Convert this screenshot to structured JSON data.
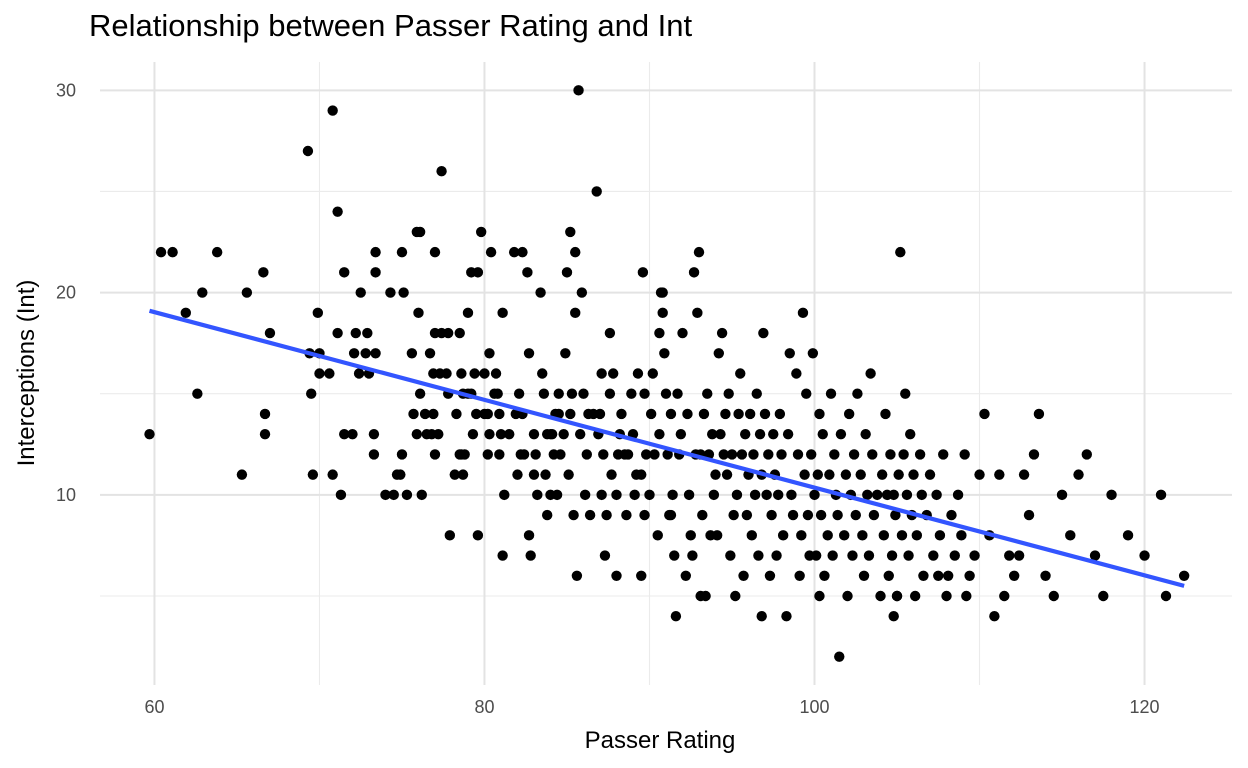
{
  "chart_data": {
    "type": "scatter",
    "title": "Relationship between Passer Rating and Int",
    "xlabel": "Passer Rating",
    "ylabel": "Interceptions (Int)",
    "xlim": [
      56.7,
      125.3
    ],
    "ylim": [
      0.6,
      31.4
    ],
    "x_ticks": [
      60,
      80,
      100,
      120
    ],
    "x_tick_labels": [
      "60",
      "80",
      "100",
      "120"
    ],
    "y_ticks": [
      10,
      20,
      30
    ],
    "y_tick_labels": [
      "10",
      "20",
      "30"
    ],
    "grid": true,
    "legend": "none",
    "point_color": "#000000",
    "trend_color": "#3355FF",
    "trend_line": {
      "x": [
        59.7,
        122.4
      ],
      "y": [
        19.1,
        5.5
      ]
    },
    "points": [
      [
        59.7,
        13
      ],
      [
        60.4,
        22
      ],
      [
        61.1,
        22
      ],
      [
        61.9,
        19
      ],
      [
        62.6,
        15
      ],
      [
        62.9,
        20
      ],
      [
        63.8,
        22
      ],
      [
        65.3,
        11
      ],
      [
        65.6,
        20
      ],
      [
        66.6,
        21
      ],
      [
        66.7,
        14
      ],
      [
        66.7,
        13
      ],
      [
        67.0,
        18
      ],
      [
        69.3,
        27
      ],
      [
        69.4,
        17
      ],
      [
        69.5,
        15
      ],
      [
        69.6,
        11
      ],
      [
        69.9,
        19
      ],
      [
        70.0,
        16
      ],
      [
        70.0,
        17
      ],
      [
        70.6,
        16
      ],
      [
        70.8,
        11
      ],
      [
        70.8,
        29
      ],
      [
        71.1,
        24
      ],
      [
        71.1,
        18
      ],
      [
        71.3,
        10
      ],
      [
        71.5,
        21
      ],
      [
        71.5,
        13
      ],
      [
        72.0,
        13
      ],
      [
        72.1,
        17
      ],
      [
        72.2,
        18
      ],
      [
        72.4,
        16
      ],
      [
        72.5,
        20
      ],
      [
        72.8,
        17
      ],
      [
        72.9,
        18
      ],
      [
        73.0,
        16
      ],
      [
        73.3,
        12
      ],
      [
        73.3,
        13
      ],
      [
        73.4,
        17
      ],
      [
        73.4,
        21
      ],
      [
        73.4,
        22
      ],
      [
        74.0,
        10
      ],
      [
        74.3,
        20
      ],
      [
        74.5,
        10
      ],
      [
        74.9,
        11
      ],
      [
        75.0,
        22
      ],
      [
        75.0,
        12
      ],
      [
        75.1,
        20
      ],
      [
        75.3,
        10
      ],
      [
        75.6,
        17
      ],
      [
        75.7,
        14
      ],
      [
        75.9,
        13
      ],
      [
        75.9,
        23
      ],
      [
        76.0,
        19
      ],
      [
        76.1,
        15
      ],
      [
        76.1,
        23
      ],
      [
        76.4,
        14
      ],
      [
        76.5,
        13
      ],
      [
        76.7,
        17
      ],
      [
        76.8,
        13
      ],
      [
        76.9,
        14
      ],
      [
        76.9,
        16
      ],
      [
        77.0,
        18
      ],
      [
        77.0,
        12
      ],
      [
        77.0,
        22
      ],
      [
        77.2,
        13
      ],
      [
        77.3,
        16
      ],
      [
        77.4,
        18
      ],
      [
        77.4,
        26
      ],
      [
        77.7,
        16
      ],
      [
        77.8,
        15
      ],
      [
        77.8,
        18
      ],
      [
        77.9,
        8
      ],
      [
        78.2,
        11
      ],
      [
        78.3,
        14
      ],
      [
        78.5,
        12
      ],
      [
        78.5,
        18
      ],
      [
        78.6,
        12
      ],
      [
        78.6,
        16
      ],
      [
        78.7,
        15
      ],
      [
        78.7,
        11
      ],
      [
        79.0,
        19
      ],
      [
        79.0,
        15
      ],
      [
        79.2,
        21
      ],
      [
        79.2,
        15
      ],
      [
        79.3,
        13
      ],
      [
        79.4,
        16
      ],
      [
        79.5,
        14
      ],
      [
        79.6,
        21
      ],
      [
        79.8,
        23
      ],
      [
        80.0,
        16
      ],
      [
        80.0,
        14
      ],
      [
        80.2,
        14
      ],
      [
        80.2,
        12
      ],
      [
        80.3,
        17
      ],
      [
        80.3,
        13
      ],
      [
        80.4,
        22
      ],
      [
        80.6,
        15
      ],
      [
        80.7,
        16
      ],
      [
        80.8,
        15
      ],
      [
        80.9,
        14
      ],
      [
        80.9,
        12
      ],
      [
        81.0,
        13
      ],
      [
        81.1,
        7
      ],
      [
        81.1,
        19
      ],
      [
        81.2,
        10
      ],
      [
        81.5,
        13
      ],
      [
        81.8,
        22
      ],
      [
        81.9,
        14
      ],
      [
        82.1,
        15
      ],
      [
        82.2,
        12
      ],
      [
        82.3,
        14
      ],
      [
        82.3,
        22
      ],
      [
        82.4,
        12
      ],
      [
        82.6,
        21
      ],
      [
        82.7,
        17
      ],
      [
        82.7,
        8
      ],
      [
        82.8,
        7
      ],
      [
        83.0,
        11
      ],
      [
        83.0,
        13
      ],
      [
        83.1,
        12
      ],
      [
        83.2,
        10
      ],
      [
        83.4,
        20
      ],
      [
        83.5,
        16
      ],
      [
        83.6,
        15
      ],
      [
        83.7,
        11
      ],
      [
        83.8,
        13
      ],
      [
        83.8,
        9
      ],
      [
        84.0,
        10
      ],
      [
        84.1,
        13
      ],
      [
        84.2,
        12
      ],
      [
        84.3,
        14
      ],
      [
        84.4,
        10
      ],
      [
        84.5,
        15
      ],
      [
        84.5,
        14
      ],
      [
        84.6,
        12
      ],
      [
        84.8,
        13
      ],
      [
        84.9,
        17
      ],
      [
        85.0,
        21
      ],
      [
        85.1,
        11
      ],
      [
        85.2,
        14
      ],
      [
        85.2,
        23
      ],
      [
        85.3,
        15
      ],
      [
        85.4,
        9
      ],
      [
        85.5,
        22
      ],
      [
        85.5,
        19
      ],
      [
        85.6,
        6
      ],
      [
        85.7,
        30
      ],
      [
        85.8,
        13
      ],
      [
        85.9,
        20
      ],
      [
        86.0,
        15
      ],
      [
        86.1,
        10
      ],
      [
        86.2,
        12
      ],
      [
        86.4,
        9
      ],
      [
        86.6,
        14
      ],
      [
        86.8,
        25
      ],
      [
        86.9,
        13
      ],
      [
        87.0,
        14
      ],
      [
        87.1,
        16
      ],
      [
        87.1,
        10
      ],
      [
        87.2,
        12
      ],
      [
        87.3,
        7
      ],
      [
        87.4,
        9
      ],
      [
        87.6,
        18
      ],
      [
        87.6,
        15
      ],
      [
        87.7,
        11
      ],
      [
        87.8,
        16
      ],
      [
        88.0,
        10
      ],
      [
        88.1,
        12
      ],
      [
        88.2,
        13
      ],
      [
        88.3,
        14
      ],
      [
        88.5,
        12
      ],
      [
        88.6,
        9
      ],
      [
        88.7,
        12
      ],
      [
        88.9,
        15
      ],
      [
        89.0,
        13
      ],
      [
        89.1,
        10
      ],
      [
        89.2,
        11
      ],
      [
        89.3,
        16
      ],
      [
        89.5,
        11
      ],
      [
        89.6,
        21
      ],
      [
        89.7,
        15
      ],
      [
        89.7,
        9
      ],
      [
        89.8,
        12
      ],
      [
        90.0,
        10
      ],
      [
        90.1,
        14
      ],
      [
        90.2,
        16
      ],
      [
        90.3,
        12
      ],
      [
        90.5,
        8
      ],
      [
        90.6,
        18
      ],
      [
        90.6,
        13
      ],
      [
        90.7,
        20
      ],
      [
        90.8,
        20
      ],
      [
        90.8,
        19
      ],
      [
        90.9,
        17
      ],
      [
        91.0,
        15
      ],
      [
        91.1,
        12
      ],
      [
        91.2,
        9
      ],
      [
        91.3,
        14
      ],
      [
        91.4,
        10
      ],
      [
        91.5,
        7
      ],
      [
        91.6,
        4
      ],
      [
        91.7,
        15
      ],
      [
        91.8,
        12
      ],
      [
        91.9,
        13
      ],
      [
        92.0,
        18
      ],
      [
        92.2,
        6
      ],
      [
        92.3,
        14
      ],
      [
        92.4,
        10
      ],
      [
        92.5,
        8
      ],
      [
        92.6,
        7
      ],
      [
        92.7,
        21
      ],
      [
        92.8,
        12
      ],
      [
        92.9,
        19
      ],
      [
        93.0,
        22
      ],
      [
        93.1,
        12
      ],
      [
        93.2,
        9
      ],
      [
        93.3,
        14
      ],
      [
        93.4,
        5
      ],
      [
        93.5,
        15
      ],
      [
        93.6,
        12
      ],
      [
        93.7,
        8
      ],
      [
        93.8,
        13
      ],
      [
        93.9,
        10
      ],
      [
        94.0,
        11
      ],
      [
        94.1,
        8
      ],
      [
        94.2,
        17
      ],
      [
        94.3,
        13
      ],
      [
        94.4,
        18
      ],
      [
        94.5,
        12
      ],
      [
        94.6,
        14
      ],
      [
        94.7,
        11
      ],
      [
        94.8,
        15
      ],
      [
        94.9,
        7
      ],
      [
        95.0,
        12
      ],
      [
        95.1,
        9
      ],
      [
        95.2,
        5
      ],
      [
        95.3,
        10
      ],
      [
        95.4,
        14
      ],
      [
        95.5,
        16
      ],
      [
        95.6,
        12
      ],
      [
        95.7,
        6
      ],
      [
        95.8,
        13
      ],
      [
        95.9,
        9
      ],
      [
        96.0,
        11
      ],
      [
        96.1,
        14
      ],
      [
        96.2,
        8
      ],
      [
        96.3,
        12
      ],
      [
        96.4,
        10
      ],
      [
        96.5,
        15
      ],
      [
        96.6,
        7
      ],
      [
        96.7,
        13
      ],
      [
        96.8,
        11
      ],
      [
        96.9,
        18
      ],
      [
        97.0,
        14
      ],
      [
        97.1,
        10
      ],
      [
        97.2,
        12
      ],
      [
        97.3,
        6
      ],
      [
        97.4,
        9
      ],
      [
        97.5,
        13
      ],
      [
        97.6,
        11
      ],
      [
        97.7,
        7
      ],
      [
        97.8,
        10
      ],
      [
        97.9,
        14
      ],
      [
        98.0,
        12
      ],
      [
        98.1,
        8
      ],
      [
        98.3,
        4
      ],
      [
        98.4,
        13
      ],
      [
        98.5,
        17
      ],
      [
        98.6,
        10
      ],
      [
        98.7,
        9
      ],
      [
        98.9,
        16
      ],
      [
        99.0,
        12
      ],
      [
        99.1,
        6
      ],
      [
        99.2,
        8
      ],
      [
        99.3,
        19
      ],
      [
        99.4,
        11
      ],
      [
        99.5,
        15
      ],
      [
        99.6,
        9
      ],
      [
        99.7,
        7
      ],
      [
        99.8,
        12
      ],
      [
        99.9,
        17
      ],
      [
        100.0,
        10
      ],
      [
        100.1,
        7
      ],
      [
        100.2,
        11
      ],
      [
        100.3,
        14
      ],
      [
        100.4,
        9
      ],
      [
        100.5,
        13
      ],
      [
        100.6,
        6
      ],
      [
        100.8,
        8
      ],
      [
        100.9,
        11
      ],
      [
        101.0,
        15
      ],
      [
        101.1,
        7
      ],
      [
        101.2,
        12
      ],
      [
        101.3,
        10
      ],
      [
        101.4,
        9
      ],
      [
        101.5,
        2
      ],
      [
        101.6,
        13
      ],
      [
        101.8,
        8
      ],
      [
        101.9,
        11
      ],
      [
        102.0,
        5
      ],
      [
        102.1,
        14
      ],
      [
        102.2,
        10
      ],
      [
        102.3,
        7
      ],
      [
        102.4,
        12
      ],
      [
        102.5,
        9
      ],
      [
        102.6,
        15
      ],
      [
        102.8,
        11
      ],
      [
        102.9,
        8
      ],
      [
        103.0,
        6
      ],
      [
        103.1,
        13
      ],
      [
        103.2,
        10
      ],
      [
        103.3,
        7
      ],
      [
        103.4,
        16
      ],
      [
        103.5,
        12
      ],
      [
        103.6,
        9
      ],
      [
        103.8,
        10
      ],
      [
        104.0,
        5
      ],
      [
        104.1,
        11
      ],
      [
        104.2,
        8
      ],
      [
        104.3,
        14
      ],
      [
        104.4,
        10
      ],
      [
        104.5,
        6
      ],
      [
        104.6,
        12
      ],
      [
        104.7,
        7
      ],
      [
        104.8,
        10
      ],
      [
        104.9,
        9
      ],
      [
        105.0,
        5
      ],
      [
        105.1,
        11
      ],
      [
        105.2,
        22
      ],
      [
        105.3,
        8
      ],
      [
        105.4,
        12
      ],
      [
        105.5,
        15
      ],
      [
        105.6,
        10
      ],
      [
        105.7,
        7
      ],
      [
        105.8,
        13
      ],
      [
        105.9,
        9
      ],
      [
        106.0,
        11
      ],
      [
        106.1,
        5
      ],
      [
        106.2,
        8
      ],
      [
        106.4,
        12
      ],
      [
        106.5,
        10
      ],
      [
        106.6,
        6
      ],
      [
        106.8,
        9
      ],
      [
        107.0,
        11
      ],
      [
        107.2,
        7
      ],
      [
        107.4,
        10
      ],
      [
        107.6,
        8
      ],
      [
        107.8,
        12
      ],
      [
        108.0,
        5
      ],
      [
        108.1,
        6
      ],
      [
        108.3,
        9
      ],
      [
        108.5,
        7
      ],
      [
        108.7,
        10
      ],
      [
        108.9,
        8
      ],
      [
        109.1,
        12
      ],
      [
        109.4,
        6
      ],
      [
        109.7,
        7
      ],
      [
        110.0,
        11
      ],
      [
        110.3,
        14
      ],
      [
        110.6,
        8
      ],
      [
        110.9,
        4
      ],
      [
        111.2,
        11
      ],
      [
        111.5,
        5
      ],
      [
        111.8,
        7
      ],
      [
        112.1,
        6
      ],
      [
        112.4,
        7
      ],
      [
        112.7,
        11
      ],
      [
        113.0,
        9
      ],
      [
        113.3,
        12
      ],
      [
        113.6,
        14
      ],
      [
        114.0,
        6
      ],
      [
        114.5,
        5
      ],
      [
        115.0,
        10
      ],
      [
        115.5,
        8
      ],
      [
        116.0,
        11
      ],
      [
        116.5,
        12
      ],
      [
        117.0,
        7
      ],
      [
        117.5,
        5
      ],
      [
        118.0,
        10
      ],
      [
        119.0,
        8
      ],
      [
        120.0,
        7
      ],
      [
        121.0,
        10
      ],
      [
        121.3,
        5
      ],
      [
        122.4,
        6
      ],
      [
        79.6,
        8
      ],
      [
        88.0,
        6
      ],
      [
        89.5,
        6
      ],
      [
        91.3,
        9
      ],
      [
        86.3,
        14
      ],
      [
        84.0,
        13
      ],
      [
        82.0,
        11
      ],
      [
        78.8,
        12
      ],
      [
        76.2,
        10
      ],
      [
        74.7,
        11
      ],
      [
        93.1,
        5
      ],
      [
        96.8,
        4
      ],
      [
        100.3,
        5
      ],
      [
        104.8,
        4
      ],
      [
        105.0,
        5
      ],
      [
        107.5,
        6
      ],
      [
        109.2,
        5
      ]
    ]
  }
}
